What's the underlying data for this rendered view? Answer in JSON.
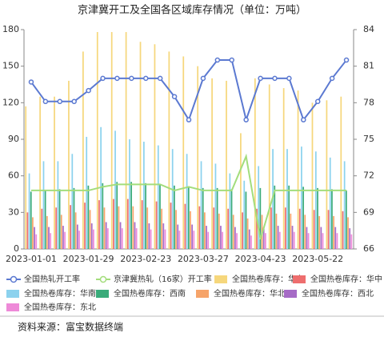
{
  "chart_data": {
    "type": "bar",
    "title": "京津冀开工及全国各区域库存情况（单位：万吨）",
    "source": "资料来源：富宝数据终端",
    "categories": [
      "2023-01-01",
      null,
      null,
      null,
      "2023-01-29",
      null,
      null,
      null,
      "2023-02-23",
      null,
      null,
      null,
      "2023-03-27",
      null,
      null,
      null,
      "2023-04-23",
      null,
      null,
      null,
      "2023-05-22",
      null,
      null
    ],
    "ylim": [
      0,
      180
    ],
    "yticks": [
      0,
      30,
      60,
      90,
      120,
      150,
      180
    ],
    "y2lim": [
      66,
      84
    ],
    "y2ticks": [
      66,
      69,
      72,
      75,
      78,
      81,
      84
    ],
    "series": [
      {
        "name": "全国热轧开工率",
        "type": "line",
        "axis": "y2",
        "color": "#5b79d1",
        "markers": true,
        "values": [
          79.7,
          78.1,
          78.1,
          78.1,
          79.0,
          80.0,
          80.0,
          80.0,
          80.0,
          80.0,
          78.5,
          76.6,
          80.0,
          81.5,
          81.5,
          76.6,
          80.0,
          80.0,
          80.0,
          76.6,
          78.1,
          80.0,
          81.5
        ]
      },
      {
        "name": "京津冀热轧（16家）开工率",
        "type": "line",
        "axis": "y2",
        "color": "#a3dd7c",
        "markers": false,
        "values": [
          70.8,
          70.8,
          70.8,
          70.8,
          70.8,
          71.1,
          71.3,
          71.3,
          71.3,
          71.3,
          70.8,
          71.1,
          70.8,
          70.8,
          70.8,
          73.6,
          66.8,
          70.8,
          70.8,
          70.8,
          70.8,
          70.8,
          70.8
        ]
      },
      {
        "name": "全国热卷库存：华东",
        "color": "#f6d77c",
        "values": [
          117,
          125,
          125,
          138,
          162,
          178,
          178,
          178,
          170,
          168,
          162,
          158,
          150,
          140,
          138,
          95,
          140,
          135,
          132,
          130,
          120,
          122,
          125
        ]
      },
      {
        "name": "全国热卷库存：华中",
        "color": "#ee6e6e",
        "values": [
          30,
          33,
          34,
          36,
          38,
          40,
          41,
          41,
          40,
          39,
          38,
          37,
          35,
          34,
          33,
          30,
          33,
          34,
          34,
          33,
          32,
          32,
          31
        ]
      },
      {
        "name": "全国热卷库存：华南",
        "color": "#8cd2ee",
        "values": [
          62,
          72,
          72,
          78,
          92,
          100,
          97,
          90,
          88,
          85,
          82,
          78,
          72,
          70,
          62,
          56,
          68,
          82,
          82,
          84,
          80,
          75,
          72
        ]
      },
      {
        "name": "全国热卷库存：西南",
        "color": "#3aab7a",
        "values": [
          47,
          48,
          49,
          50,
          52,
          54,
          55,
          55,
          54,
          53,
          52,
          51,
          50,
          50,
          49,
          47,
          50,
          52,
          52,
          51,
          50,
          49,
          48
        ]
      },
      {
        "name": "全国热卷库存：华北",
        "color": "#f6a46a",
        "values": [
          26,
          27,
          28,
          30,
          32,
          34,
          35,
          35,
          34,
          33,
          32,
          31,
          30,
          29,
          28,
          25,
          28,
          29,
          29,
          28,
          27,
          27,
          26
        ]
      },
      {
        "name": "全国热卷库存：西北",
        "color": "#a66bc6",
        "values": [
          18,
          18,
          19,
          20,
          21,
          22,
          22,
          22,
          21,
          21,
          20,
          20,
          19,
          19,
          18,
          16,
          18,
          19,
          19,
          18,
          18,
          18,
          17
        ]
      },
      {
        "name": "全国热卷库存：东北",
        "color": "#ee8ad8",
        "values": [
          12,
          13,
          14,
          15,
          16,
          17,
          17,
          17,
          16,
          16,
          15,
          15,
          14,
          14,
          13,
          11,
          13,
          14,
          14,
          13,
          13,
          13,
          12
        ]
      }
    ]
  }
}
